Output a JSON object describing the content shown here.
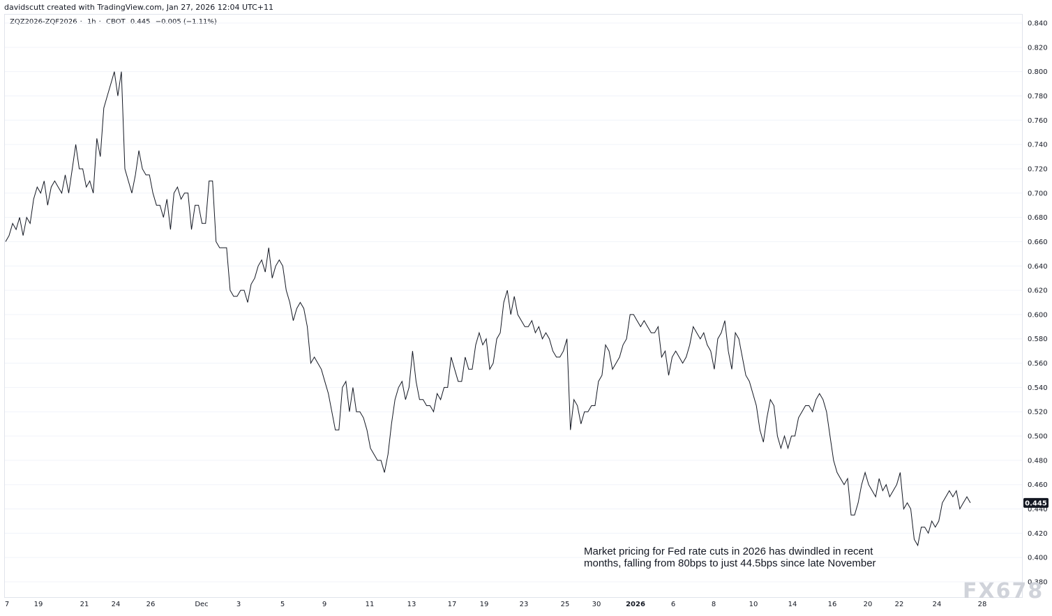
{
  "header": {
    "credit": "davidscutt created with TradingView.com, Jan 27, 2026 12:04 UTC+11",
    "symbol": "ZQZ2026-ZQF2026",
    "interval": "1h",
    "exchange": "CBOT",
    "last": "0.445",
    "change": "−0.005 (−1.11%)"
  },
  "annotation": {
    "line1": "Market pricing for Fed rate cuts in 2026 has dwindled in recent",
    "line2": "months, falling from 80bps to just 44.5bps since late November"
  },
  "watermark": "FX678",
  "colors": {
    "line": "#131722",
    "badge": "#131722",
    "grid": "#f0f3fa"
  },
  "chart_data": {
    "type": "line",
    "y_tick_labels": [
      "0.840",
      "0.820",
      "0.800",
      "0.780",
      "0.760",
      "0.740",
      "0.720",
      "0.700",
      "0.680",
      "0.660",
      "0.640",
      "0.620",
      "0.600",
      "0.580",
      "0.560",
      "0.540",
      "0.520",
      "0.500",
      "0.480",
      "0.460",
      "0.440",
      "0.420",
      "0.400",
      "0.380"
    ],
    "ylim": [
      0.38,
      0.84
    ],
    "last_value_label": "0.445",
    "x_tick_labels": [
      {
        "label": "7",
        "bold": false
      },
      {
        "label": "19",
        "bold": false
      },
      {
        "label": "21",
        "bold": false
      },
      {
        "label": "24",
        "bold": false
      },
      {
        "label": "26",
        "bold": false
      },
      {
        "label": "Dec",
        "bold": false
      },
      {
        "label": "3",
        "bold": false
      },
      {
        "label": "5",
        "bold": false
      },
      {
        "label": "9",
        "bold": false
      },
      {
        "label": "11",
        "bold": false
      },
      {
        "label": "13",
        "bold": false
      },
      {
        "label": "17",
        "bold": false
      },
      {
        "label": "19",
        "bold": false
      },
      {
        "label": "23",
        "bold": false
      },
      {
        "label": "25",
        "bold": false
      },
      {
        "label": "30",
        "bold": false
      },
      {
        "label": "2026",
        "bold": true
      },
      {
        "label": "6",
        "bold": false
      },
      {
        "label": "8",
        "bold": false
      },
      {
        "label": "10",
        "bold": false
      },
      {
        "label": "14",
        "bold": false
      },
      {
        "label": "16",
        "bold": false
      },
      {
        "label": "20",
        "bold": false
      },
      {
        "label": "22",
        "bold": false
      },
      {
        "label": "24",
        "bold": false
      },
      {
        "label": "28",
        "bold": false
      }
    ],
    "series": [
      {
        "values": [
          0.66,
          0.665,
          0.675,
          0.67,
          0.68,
          0.665,
          0.68,
          0.675,
          0.695,
          0.705,
          0.7,
          0.71,
          0.69,
          0.705,
          0.71,
          0.705,
          0.7,
          0.715,
          0.7,
          0.72,
          0.74,
          0.72,
          0.72,
          0.705,
          0.71,
          0.7,
          0.745,
          0.73,
          0.77,
          0.78,
          0.79,
          0.8,
          0.78,
          0.8,
          0.72,
          0.71,
          0.7,
          0.715,
          0.735,
          0.72,
          0.715,
          0.715,
          0.7,
          0.69,
          0.69,
          0.68,
          0.695,
          0.67,
          0.7,
          0.705,
          0.695,
          0.7,
          0.7,
          0.67,
          0.69,
          0.69,
          0.675,
          0.675,
          0.71,
          0.71,
          0.66,
          0.655,
          0.655,
          0.655,
          0.62,
          0.615,
          0.615,
          0.62,
          0.62,
          0.61,
          0.625,
          0.63,
          0.64,
          0.645,
          0.635,
          0.655,
          0.63,
          0.64,
          0.645,
          0.64,
          0.62,
          0.61,
          0.595,
          0.605,
          0.61,
          0.605,
          0.59,
          0.56,
          0.565,
          0.56,
          0.555,
          0.545,
          0.535,
          0.52,
          0.505,
          0.505,
          0.54,
          0.545,
          0.52,
          0.54,
          0.52,
          0.52,
          0.515,
          0.505,
          0.49,
          0.485,
          0.48,
          0.48,
          0.47,
          0.485,
          0.51,
          0.53,
          0.54,
          0.545,
          0.53,
          0.54,
          0.57,
          0.545,
          0.53,
          0.53,
          0.525,
          0.525,
          0.52,
          0.535,
          0.53,
          0.54,
          0.54,
          0.565,
          0.555,
          0.545,
          0.545,
          0.565,
          0.555,
          0.555,
          0.575,
          0.585,
          0.575,
          0.58,
          0.555,
          0.56,
          0.58,
          0.585,
          0.61,
          0.62,
          0.6,
          0.615,
          0.6,
          0.595,
          0.59,
          0.59,
          0.595,
          0.585,
          0.59,
          0.58,
          0.585,
          0.58,
          0.57,
          0.565,
          0.565,
          0.57,
          0.58,
          0.505,
          0.53,
          0.525,
          0.51,
          0.52,
          0.52,
          0.525,
          0.525,
          0.545,
          0.55,
          0.575,
          0.57,
          0.555,
          0.56,
          0.565,
          0.575,
          0.58,
          0.6,
          0.6,
          0.595,
          0.59,
          0.595,
          0.59,
          0.585,
          0.585,
          0.59,
          0.565,
          0.57,
          0.55,
          0.565,
          0.57,
          0.565,
          0.56,
          0.565,
          0.575,
          0.59,
          0.585,
          0.58,
          0.585,
          0.575,
          0.57,
          0.555,
          0.58,
          0.585,
          0.595,
          0.57,
          0.555,
          0.585,
          0.58,
          0.565,
          0.55,
          0.545,
          0.535,
          0.525,
          0.505,
          0.495,
          0.515,
          0.53,
          0.525,
          0.5,
          0.49,
          0.5,
          0.49,
          0.5,
          0.5,
          0.515,
          0.52,
          0.525,
          0.525,
          0.52,
          0.53,
          0.535,
          0.53,
          0.52,
          0.5,
          0.48,
          0.47,
          0.465,
          0.46,
          0.465,
          0.435,
          0.435,
          0.445,
          0.46,
          0.47,
          0.46,
          0.455,
          0.45,
          0.465,
          0.455,
          0.46,
          0.45,
          0.455,
          0.46,
          0.47,
          0.44,
          0.445,
          0.44,
          0.415,
          0.41,
          0.425,
          0.425,
          0.42,
          0.43,
          0.425,
          0.43,
          0.445,
          0.45,
          0.455,
          0.45,
          0.455,
          0.44,
          0.445,
          0.45,
          0.445
        ]
      }
    ]
  }
}
